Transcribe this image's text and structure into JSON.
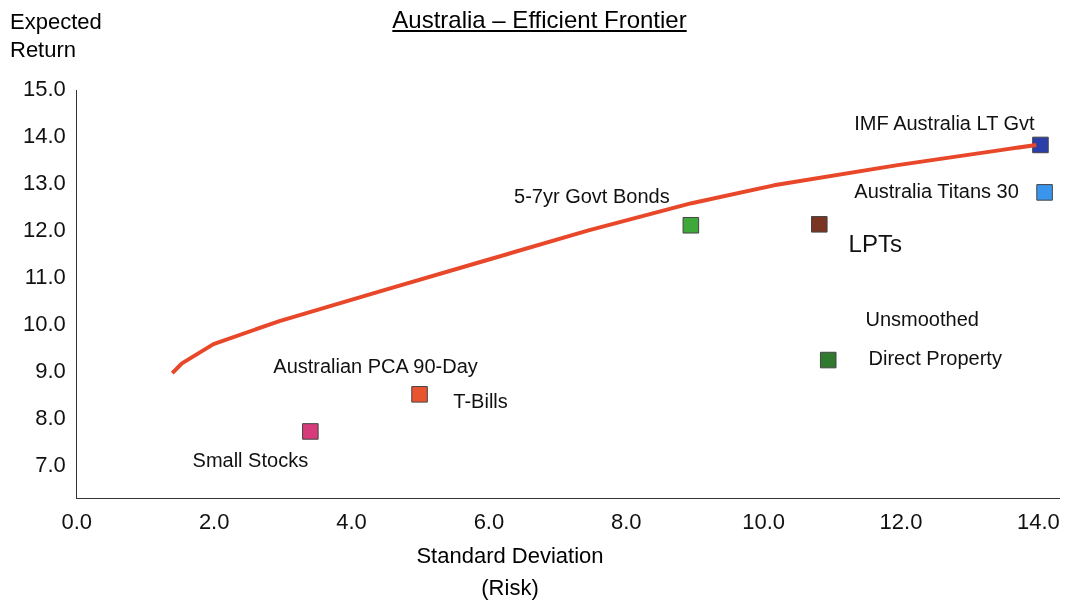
{
  "chart_data": {
    "type": "scatter",
    "title": "Australia – Efficient Frontier",
    "xlabel": "Standard Deviation\n(Risk)",
    "ylabel": "Expected\nReturn",
    "xlim": [
      0,
      14.3
    ],
    "xticks": [
      {
        "value": 0,
        "label": "0.0"
      },
      {
        "value": 2,
        "label": "2.0"
      },
      {
        "value": 4,
        "label": "4.0"
      },
      {
        "value": 6,
        "label": "6.0"
      },
      {
        "value": 8,
        "label": "8.0"
      },
      {
        "value": 10,
        "label": "10.0"
      },
      {
        "value": 12,
        "label": "12.0"
      },
      {
        "value": 14,
        "label": "14.0"
      }
    ],
    "ylim": [
      6.3,
      15
    ],
    "yticks": [
      {
        "value": 7,
        "label": "7.0"
      },
      {
        "value": 8,
        "label": "8.0"
      },
      {
        "value": 9,
        "label": "9.0"
      },
      {
        "value": 10,
        "label": "10.0"
      },
      {
        "value": 11,
        "label": "11.0"
      },
      {
        "value": 12,
        "label": "12.0"
      },
      {
        "value": 13,
        "label": "13.0"
      },
      {
        "value": 14,
        "label": "14.0"
      },
      {
        "value": 15,
        "label": "15.0"
      }
    ],
    "grid": false,
    "legend": false,
    "series": [
      {
        "type": "line",
        "marker": "none",
        "color": "#e8472a",
        "x": [
          1.39,
          1.53,
          1.99,
          2.95,
          4.45,
          5.95,
          7.45,
          8.95,
          10.15,
          11.95,
          13.45,
          13.97
        ],
        "values": [
          8.97,
          9.18,
          9.59,
          10.08,
          10.73,
          11.37,
          12.01,
          12.59,
          12.97,
          13.4,
          13.72,
          13.83
        ]
      },
      {
        "marker": "square",
        "x": [
          3.4,
          4.99,
          8.94,
          10.81,
          10.94,
          14.03,
          14.09
        ],
        "values": [
          7.73,
          8.52,
          12.12,
          12.14,
          9.25,
          13.83,
          12.82
        ],
        "colors": [
          "#d63c7a",
          "#e8542e",
          "#3fa83a",
          "#7a3522",
          "#2f7a2f",
          "#2a3fa8",
          "#3a96ec"
        ]
      }
    ],
    "annotations": [
      {
        "text": "IMF Australia LT Gvt",
        "x": 14.03,
        "y": 13.83
      },
      {
        "text": "Australia Titans 30",
        "x": 14.09,
        "y": 12.82
      },
      {
        "text": "5-7yr Govt Bonds",
        "x": 8.94,
        "y": 12.12
      },
      {
        "text": "LPTs",
        "x": 10.81,
        "y": 12.14
      },
      {
        "text": "Unsmoothed",
        "x": 10.94,
        "y": 9.25
      },
      {
        "text": "Direct Property",
        "x": 10.94,
        "y": 9.25
      },
      {
        "text": "Australian PCA 90-Day",
        "x": 4.99,
        "y": 8.52
      },
      {
        "text": "T-Bills",
        "x": 4.99,
        "y": 8.52
      },
      {
        "text": "Small Stocks",
        "x": 3.4,
        "y": 7.73
      }
    ]
  }
}
